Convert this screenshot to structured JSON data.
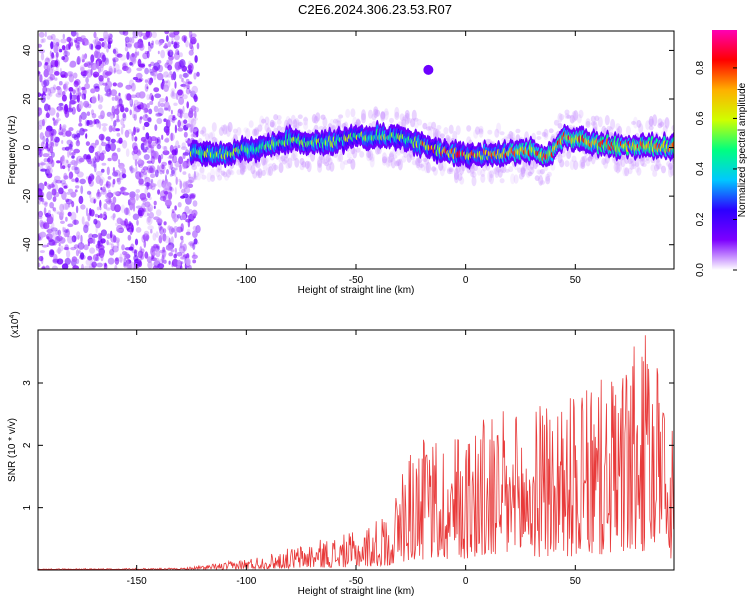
{
  "title": "C2E6.2024.306.23.53.R07",
  "colors": {
    "snr_line": "#e83a3a",
    "axis": "#000000",
    "colormap": [
      "#ffffff",
      "#7d00ff",
      "#2c00ff",
      "#00c8ff",
      "#00ff80",
      "#cfff00",
      "#ffb000",
      "#ff0000",
      "#ff00b4"
    ]
  },
  "chart_data": [
    {
      "type": "heatmap",
      "xlabel": "Height of straight line (km)",
      "ylabel": "Frequency (Hz)",
      "xlim": [
        -195,
        95
      ],
      "ylim": [
        -50,
        48
      ],
      "x_ticks": [
        -150,
        -100,
        -50,
        0,
        50
      ],
      "y_ticks": [
        -40,
        -20,
        0,
        20,
        40
      ],
      "colorbar": {
        "label": "Normalized spectral amplitude",
        "range": [
          0,
          0.95
        ],
        "ticks": [
          "0.0",
          "0.2",
          "0.4",
          "0.6",
          "0.8"
        ]
      },
      "noise_region_x": [
        -195,
        -125
      ],
      "outlier_blob": {
        "x": -17,
        "y": 32,
        "amplitude": 0.15
      },
      "ridge": [
        {
          "x": -125,
          "y": -2.0
        },
        {
          "x": -110,
          "y": -2.5
        },
        {
          "x": -100,
          "y": -1.0
        },
        {
          "x": -90,
          "y": 0.5
        },
        {
          "x": -80,
          "y": 3.5
        },
        {
          "x": -70,
          "y": 2.0
        },
        {
          "x": -60,
          "y": 2.5
        },
        {
          "x": -50,
          "y": 4.0
        },
        {
          "x": -40,
          "y": 5.0
        },
        {
          "x": -30,
          "y": 4.0
        },
        {
          "x": -20,
          "y": 1.5
        },
        {
          "x": -10,
          "y": -2.0
        },
        {
          "x": 0,
          "y": -3.0
        },
        {
          "x": 10,
          "y": -3.0
        },
        {
          "x": 20,
          "y": -2.5
        },
        {
          "x": 30,
          "y": -1.0
        },
        {
          "x": 35,
          "y": -4.0
        },
        {
          "x": 40,
          "y": -2.0
        },
        {
          "x": 45,
          "y": 4.5
        },
        {
          "x": 50,
          "y": 3.5
        },
        {
          "x": 60,
          "y": 1.5
        },
        {
          "x": 70,
          "y": 0.5
        },
        {
          "x": 80,
          "y": 0.5
        },
        {
          "x": 92,
          "y": 0.0
        }
      ]
    },
    {
      "type": "line",
      "xlabel": "Height of straight line (km)",
      "ylabel": "SNR (10 * v/v)",
      "scale_note": "(x10",
      "scale_exp": "4",
      "scale_close": ")",
      "xlim": [
        -195,
        95
      ],
      "ylim": [
        0,
        3.85
      ],
      "x_ticks": [
        -150,
        -100,
        -50,
        0,
        50
      ],
      "y_ticks": [
        1,
        2,
        3
      ],
      "envelope": [
        {
          "x": -195,
          "y": 0.02
        },
        {
          "x": -130,
          "y": 0.03
        },
        {
          "x": -110,
          "y": 0.12
        },
        {
          "x": -90,
          "y": 0.25
        },
        {
          "x": -70,
          "y": 0.45
        },
        {
          "x": -50,
          "y": 0.6
        },
        {
          "x": -35,
          "y": 0.9
        },
        {
          "x": -25,
          "y": 2.0
        },
        {
          "x": -10,
          "y": 2.1
        },
        {
          "x": 0,
          "y": 2.25
        },
        {
          "x": 10,
          "y": 2.5
        },
        {
          "x": 25,
          "y": 2.45
        },
        {
          "x": 40,
          "y": 2.7
        },
        {
          "x": 55,
          "y": 2.8
        },
        {
          "x": 65,
          "y": 3.05
        },
        {
          "x": 80,
          "y": 3.6
        },
        {
          "x": 85,
          "y": 3.85
        },
        {
          "x": 90,
          "y": 2.6
        },
        {
          "x": 95,
          "y": 2.1
        }
      ]
    }
  ]
}
